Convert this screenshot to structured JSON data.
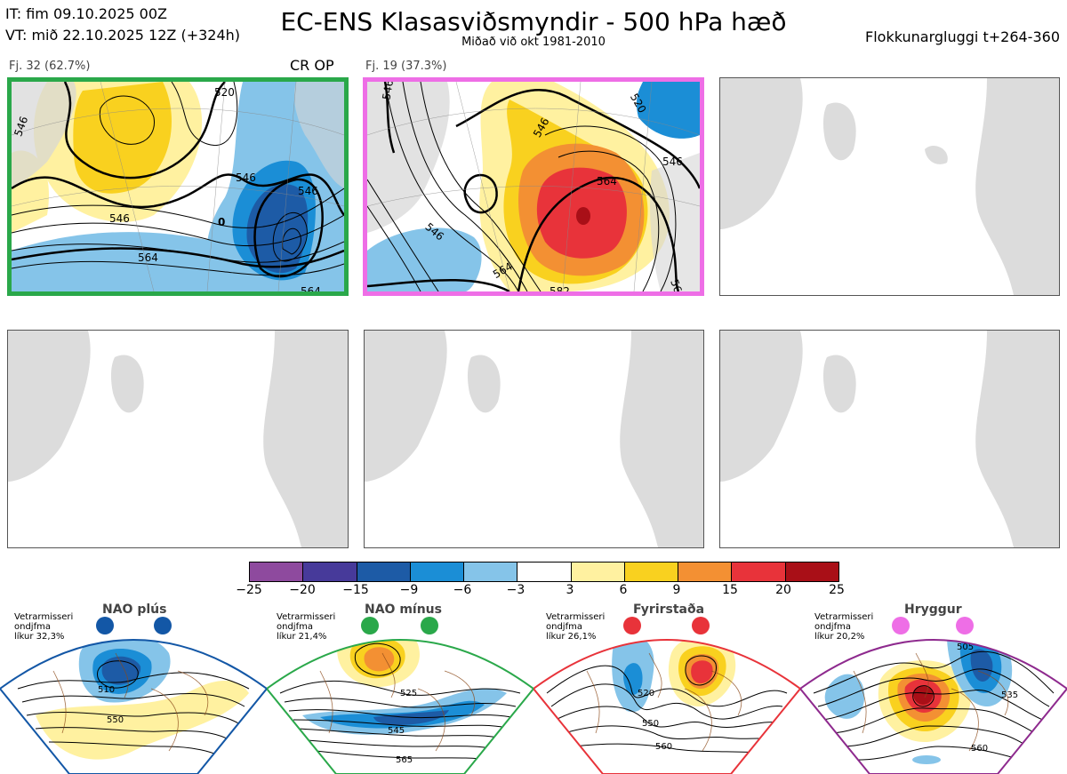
{
  "header": {
    "it_line": "IT: fim 09.10.2025 00Z",
    "vt_line": "VT: mið 22.10.2025 12Z  (+324h)",
    "title": "EC-ENS Klasasviðsmyndir - 500 hPa hæð",
    "subtitle": "Miðað við okt 1981-2010",
    "window": "Flokkunargluggi t+264-360"
  },
  "clusters": [
    {
      "label": "Fj. 32 (62.7%)",
      "tags": "CR OP",
      "border_color": "#2aa84a",
      "contour_labels": [
        "546",
        "520",
        "546",
        "546",
        "564",
        "564",
        "546",
        "0"
      ]
    },
    {
      "label": "Fj. 19 (37.3%)",
      "tags": "",
      "border_color": "#ee6ee6",
      "contour_labels": [
        "546",
        "520",
        "546",
        "564",
        "546",
        "546",
        "564",
        "582",
        "564"
      ]
    }
  ],
  "colorbar": {
    "colors": [
      "#8e4a9e",
      "#473a9a",
      "#1d5ba6",
      "#1b8ed6",
      "#85c4e9",
      "#ffffff",
      "#fff1a0",
      "#f9d11f",
      "#f39033",
      "#e8333a",
      "#a90f17"
    ],
    "ticks": [
      "−25",
      "−20",
      "−15",
      "−9",
      "−6",
      "−3",
      "3",
      "6",
      "9",
      "15",
      "20",
      "25"
    ]
  },
  "regimes": [
    {
      "name": "NAO plús",
      "note": "Vetrarmisseri\nondjfma\nlíkur 32,3%",
      "color": "#1357a6",
      "dot_color": "#1357a6",
      "contour_labels": [
        "510",
        "550"
      ]
    },
    {
      "name": "NAO mínus",
      "note": "Vetrarmisseri\nondjfma\nlíkur 21,4%",
      "color": "#2aa84a",
      "dot_color": "#2aa84a",
      "contour_labels": [
        "525",
        "545",
        "565"
      ]
    },
    {
      "name": "Fyrirstaða",
      "note": "Vetrarmisseri\nondjfma\nlíkur 26,1%",
      "color": "#e8333a",
      "dot_color": "#e8333a",
      "contour_labels": [
        "520",
        "550",
        "560"
      ]
    },
    {
      "name": "Hryggur",
      "note": "Vetrarmisseri\nondjfma\nlíkur 20,2%",
      "color": "#8e2a8e",
      "dot_color": "#ee6ee6",
      "contour_labels": [
        "505",
        "535",
        "560"
      ]
    }
  ]
}
